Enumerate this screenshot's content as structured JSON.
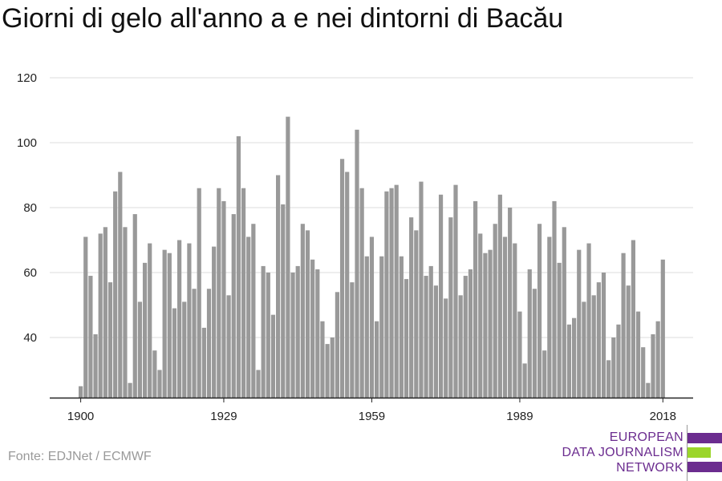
{
  "title": "Giorni di gelo all'anno a e nei dintorni di Bacău",
  "source": "Fonte: EDJNet / ECMWF",
  "logo": {
    "line1": "EUROPEAN",
    "line2": "DATA JOURNALISM",
    "line3": "NETWORK",
    "colors": {
      "purple": "#6b2c8f",
      "green": "#9bd52a"
    }
  },
  "colors": {
    "bar": "#999999",
    "grid": "#dddddd",
    "axis": "#222222"
  },
  "chart_data": {
    "type": "bar",
    "title": "Giorni di gelo all'anno a e nei dintorni di Bacău",
    "xlabel": "",
    "ylabel": "",
    "ylim": [
      21.5,
      120
    ],
    "yticks": [
      40,
      60,
      80,
      100,
      120
    ],
    "xticks": [
      1900,
      1929,
      1959,
      1989,
      2018
    ],
    "grid": true,
    "x": [
      1900,
      1901,
      1902,
      1903,
      1904,
      1905,
      1906,
      1907,
      1908,
      1909,
      1910,
      1911,
      1912,
      1913,
      1914,
      1915,
      1916,
      1917,
      1918,
      1919,
      1920,
      1921,
      1922,
      1923,
      1924,
      1925,
      1926,
      1927,
      1928,
      1929,
      1930,
      1931,
      1932,
      1933,
      1934,
      1935,
      1936,
      1937,
      1938,
      1939,
      1940,
      1941,
      1942,
      1943,
      1944,
      1945,
      1946,
      1947,
      1948,
      1949,
      1950,
      1951,
      1952,
      1953,
      1954,
      1955,
      1956,
      1957,
      1958,
      1959,
      1960,
      1961,
      1962,
      1963,
      1964,
      1965,
      1966,
      1967,
      1968,
      1969,
      1970,
      1971,
      1972,
      1973,
      1974,
      1975,
      1976,
      1977,
      1978,
      1979,
      1980,
      1981,
      1982,
      1983,
      1984,
      1985,
      1986,
      1987,
      1988,
      1989,
      1990,
      1991,
      1992,
      1993,
      1994,
      1995,
      1996,
      1997,
      1998,
      1999,
      2000,
      2001,
      2002,
      2003,
      2004,
      2005,
      2006,
      2007,
      2008,
      2009,
      2010,
      2011,
      2012,
      2013,
      2014,
      2015,
      2016,
      2017,
      2018
    ],
    "values": [
      25,
      71,
      59,
      41,
      72,
      74,
      57,
      85,
      91,
      74,
      26,
      78,
      51,
      63,
      69,
      36,
      30,
      67,
      66,
      49,
      70,
      51,
      69,
      55,
      86,
      43,
      55,
      68,
      86,
      82,
      53,
      78,
      102,
      86,
      71,
      75,
      30,
      62,
      60,
      47,
      90,
      81,
      108,
      60,
      62,
      75,
      73,
      64,
      61,
      45,
      38,
      40,
      54,
      95,
      91,
      57,
      104,
      86,
      65,
      71,
      45,
      65,
      85,
      86,
      87,
      65,
      58,
      77,
      73,
      88,
      59,
      62,
      56,
      84,
      52,
      77,
      87,
      53,
      59,
      61,
      82,
      72,
      66,
      67,
      75,
      84,
      71,
      80,
      69,
      48,
      32,
      61,
      55,
      75,
      36,
      71,
      82,
      63,
      74,
      44,
      46,
      67,
      51,
      69,
      53,
      57,
      60,
      33,
      40,
      44,
      66,
      56,
      70,
      48,
      37,
      26,
      41,
      45,
      64
    ]
  }
}
